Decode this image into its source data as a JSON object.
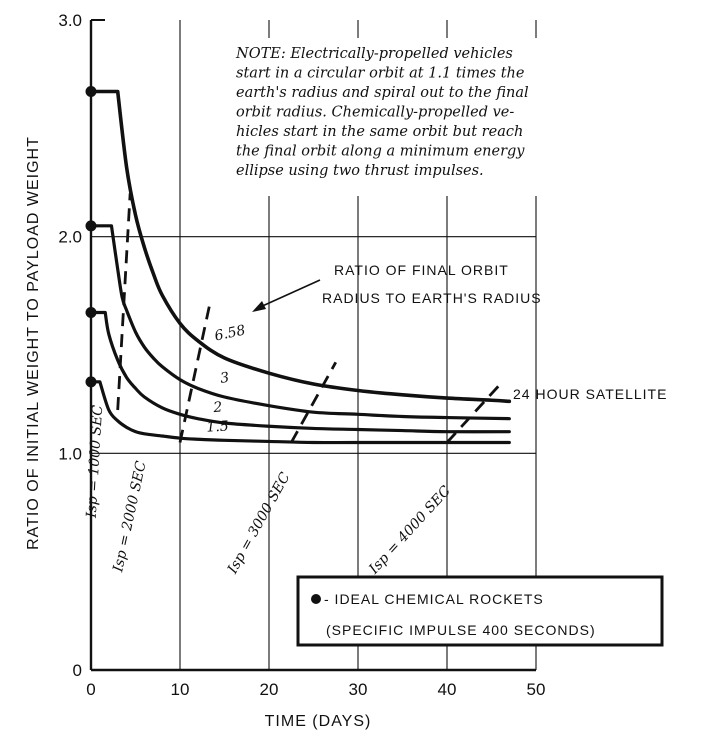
{
  "chart_data": {
    "type": "line",
    "title": "",
    "xlabel": "TIME (DAYS)",
    "ylabel": "RATIO OF INITIAL WEIGHT TO PAYLOAD WEIGHT",
    "xlim": [
      0,
      50
    ],
    "ylim": [
      0,
      3.0
    ],
    "x_ticks": [
      0,
      10,
      20,
      30,
      40,
      50
    ],
    "x_tick_labels": [
      "0",
      "10",
      "20",
      "30",
      "40",
      "50"
    ],
    "y_ticks": [
      0,
      1.0,
      2.0,
      3.0
    ],
    "y_tick_labels": [
      "0",
      "1.0",
      "2.0",
      "3.0"
    ],
    "grid": true,
    "note_lines": [
      "NOTE: Electrically-propelled vehicles",
      "start in a circular orbit at 1.1 times the",
      "earth's radius and spiral out to the final",
      "orbit radius. Chemically-propelled ve-",
      "hicles start in the same orbit but reach",
      "the final orbit along a minimum energy",
      "ellipse using two thrust impulses."
    ],
    "curve_family_label": [
      "RATIO OF FINAL ORBIT",
      "RADIUS TO EARTH'S RADIUS"
    ],
    "end_annotation": "24 HOUR SATELLITE",
    "series": [
      {
        "name": "6.58",
        "chemical_ratio": 2.67,
        "x": [
          3.0,
          4.0,
          5.0,
          6.0,
          7.0,
          8.0,
          10.0,
          12.0,
          15.0,
          20.0,
          25.0,
          30.0,
          35.0,
          40.0,
          45.0,
          47.0
        ],
        "y": [
          2.67,
          2.32,
          2.1,
          1.95,
          1.83,
          1.73,
          1.6,
          1.52,
          1.44,
          1.37,
          1.32,
          1.29,
          1.27,
          1.255,
          1.245,
          1.24
        ]
      },
      {
        "name": "3",
        "chemical_ratio": 2.05,
        "x": [
          2.3,
          3.0,
          3.5,
          4.0,
          5.0,
          6.0,
          7.0,
          8.0,
          10.0,
          12.0,
          15.0,
          20.0,
          25.0,
          30.0,
          35.0,
          40.0,
          47.0
        ],
        "y": [
          2.05,
          1.85,
          1.72,
          1.66,
          1.56,
          1.49,
          1.44,
          1.4,
          1.34,
          1.3,
          1.26,
          1.22,
          1.19,
          1.18,
          1.17,
          1.165,
          1.16
        ]
      },
      {
        "name": "2",
        "chemical_ratio": 1.65,
        "x": [
          1.6,
          2.0,
          3.0,
          4.0,
          5.0,
          6.0,
          8.0,
          10.0,
          12.0,
          15.0,
          20.0,
          25.0,
          30.0,
          35.0,
          40.0,
          47.0
        ],
        "y": [
          1.65,
          1.55,
          1.43,
          1.35,
          1.3,
          1.26,
          1.21,
          1.18,
          1.16,
          1.14,
          1.125,
          1.115,
          1.11,
          1.105,
          1.1,
          1.1
        ]
      },
      {
        "name": "1.5",
        "chemical_ratio": 1.33,
        "x": [
          1.0,
          2.0,
          3.0,
          4.0,
          5.0,
          6.0,
          8.0,
          10.0,
          12.0,
          15.0,
          20.0,
          25.0,
          30.0,
          40.0,
          47.0
        ],
        "y": [
          1.33,
          1.2,
          1.15,
          1.12,
          1.1,
          1.09,
          1.08,
          1.07,
          1.065,
          1.06,
          1.055,
          1.05,
          1.05,
          1.05,
          1.05
        ]
      }
    ],
    "chemical_points_x": 0,
    "isp_lines": [
      {
        "label": "Isp = 1000 SEC",
        "x": [
          3.0,
          4.4
        ],
        "y": [
          1.2,
          2.2
        ]
      },
      {
        "label": "Isp = 2000 SEC",
        "x": [
          10.0,
          13.3
        ],
        "y": [
          1.05,
          1.68
        ]
      },
      {
        "label": "Isp = 3000 SEC",
        "x": [
          22.5,
          27.5
        ],
        "y": [
          1.05,
          1.42
        ]
      },
      {
        "label": "Isp = 4000 SEC",
        "x": [
          40.0,
          46.0
        ],
        "y": [
          1.05,
          1.32
        ]
      }
    ],
    "legend": {
      "line1": "- IDEAL CHEMICAL ROCKETS",
      "line2": "(SPECIFIC IMPULSE 400 SECONDS)"
    }
  }
}
